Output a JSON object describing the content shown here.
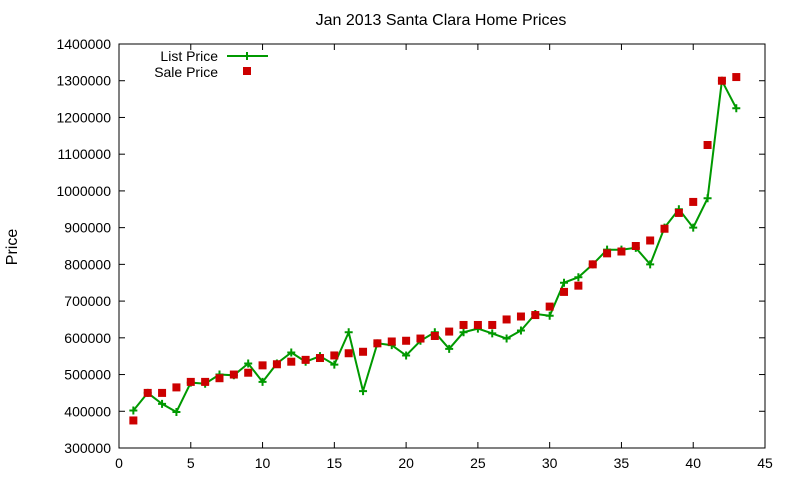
{
  "chart_data": {
    "type": "line",
    "title": "Jan 2013 Santa Clara Home Prices",
    "xlabel": "",
    "ylabel": "Price",
    "xlim": [
      0,
      45
    ],
    "ylim": [
      300000,
      1400000
    ],
    "x_ticks": [
      0,
      5,
      10,
      15,
      20,
      25,
      30,
      35,
      40,
      45
    ],
    "y_ticks": [
      300000,
      400000,
      500000,
      600000,
      700000,
      800000,
      900000,
      1000000,
      1100000,
      1200000,
      1300000,
      1400000
    ],
    "legend_position": "top-left",
    "grid": false,
    "series": [
      {
        "name": "List Price",
        "style": "line+plus",
        "color": "#009900",
        "x": [
          1,
          2,
          3,
          4,
          5,
          6,
          7,
          8,
          9,
          10,
          11,
          12,
          13,
          14,
          15,
          16,
          17,
          18,
          19,
          20,
          21,
          22,
          23,
          24,
          25,
          26,
          27,
          28,
          29,
          30,
          31,
          32,
          33,
          34,
          35,
          36,
          37,
          38,
          39,
          40,
          41,
          42,
          43
        ],
        "values": [
          402000,
          450000,
          420000,
          398000,
          478000,
          475000,
          500000,
          498000,
          530000,
          480000,
          530000,
          560000,
          535000,
          550000,
          527000,
          615000,
          455000,
          585000,
          580000,
          552000,
          592000,
          615000,
          570000,
          615000,
          625000,
          612000,
          598000,
          620000,
          665000,
          660000,
          750000,
          765000,
          800000,
          840000,
          840000,
          845000,
          800000,
          900000,
          950000,
          900000,
          980000,
          1300000,
          1225000
        ]
      },
      {
        "name": "Sale Price",
        "style": "square",
        "color": "#cc0000",
        "x": [
          1,
          2,
          3,
          4,
          5,
          6,
          7,
          8,
          9,
          10,
          11,
          12,
          13,
          14,
          15,
          16,
          17,
          18,
          19,
          20,
          21,
          22,
          23,
          24,
          25,
          26,
          27,
          28,
          29,
          30,
          31,
          32,
          33,
          34,
          35,
          36,
          37,
          38,
          39,
          40,
          41,
          42,
          43
        ],
        "values": [
          375000,
          450000,
          450000,
          465000,
          480000,
          480000,
          490000,
          500000,
          505000,
          525000,
          528000,
          535000,
          540000,
          545000,
          552000,
          558000,
          562000,
          585000,
          590000,
          592000,
          598000,
          605000,
          617000,
          635000,
          635000,
          635000,
          650000,
          658000,
          662000,
          685000,
          725000,
          742000,
          800000,
          830000,
          835000,
          850000,
          865000,
          897000,
          940000,
          970000,
          1125000,
          1300000,
          1310000
        ]
      }
    ]
  }
}
